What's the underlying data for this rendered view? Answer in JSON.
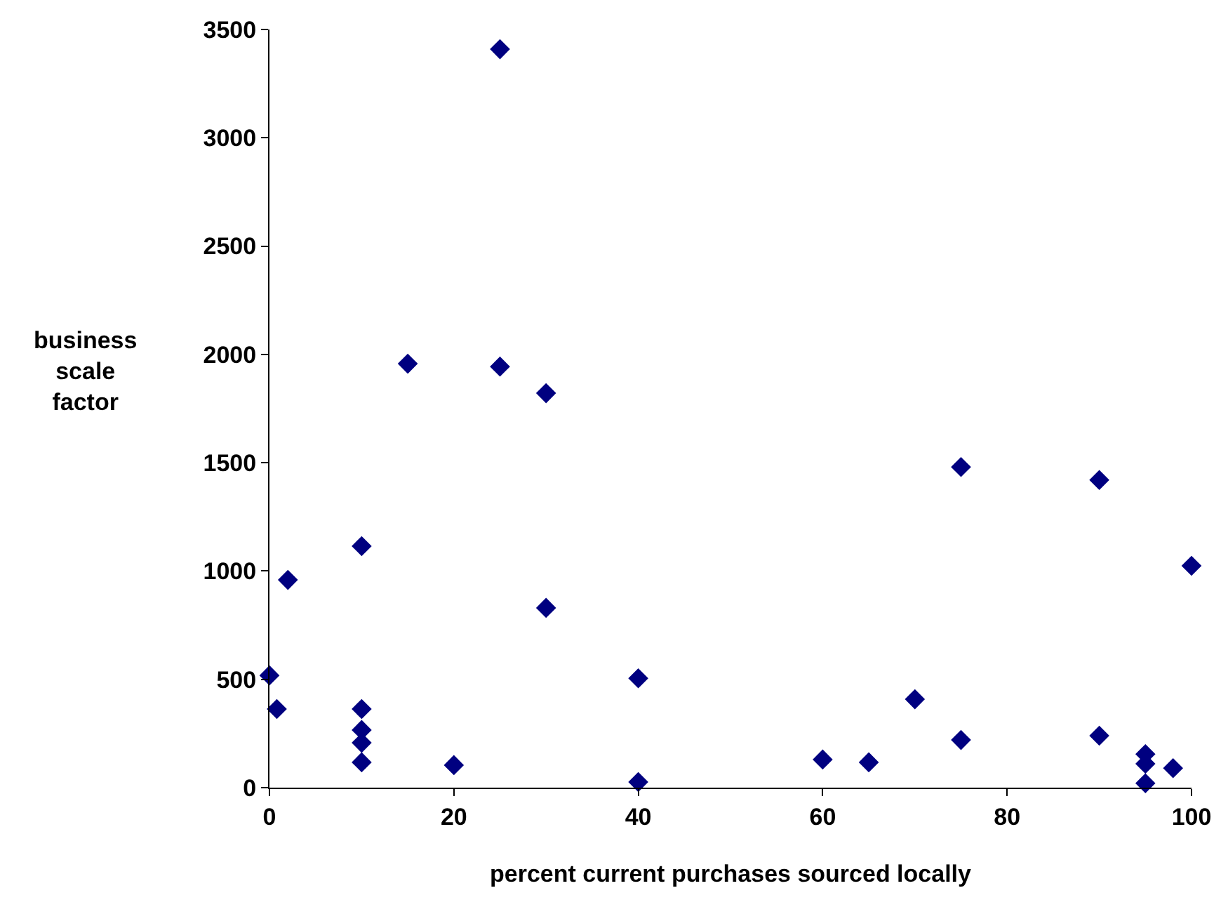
{
  "chart_data": {
    "type": "scatter",
    "xlabel": "percent current purchases sourced locally",
    "ylabel": "business\nscale\nfactor",
    "x": [
      0,
      0.8,
      2,
      10,
      10,
      10,
      10,
      10,
      20,
      15,
      25,
      25,
      30,
      30,
      40,
      40,
      60,
      65,
      70,
      75,
      75,
      90,
      90,
      95,
      95,
      95,
      98,
      100
    ],
    "series": [
      {
        "color": "#000080",
        "values": [
          518,
          363,
          959,
          1115,
          363,
          266,
          207,
          117,
          104,
          1957,
          3409,
          1944,
          1821,
          830,
          505,
          26,
          130,
          117,
          408,
          1480,
          220,
          1420,
          240,
          155,
          110,
          20,
          90,
          1024
        ]
      }
    ],
    "xlim": [
      0,
      100
    ],
    "xticks": [
      0,
      20,
      40,
      60,
      80,
      100
    ],
    "ylim": [
      0,
      3500
    ],
    "yticks": [
      0,
      500,
      1000,
      1500,
      2000,
      2500,
      3000,
      3500
    ],
    "marker": "diamond"
  }
}
